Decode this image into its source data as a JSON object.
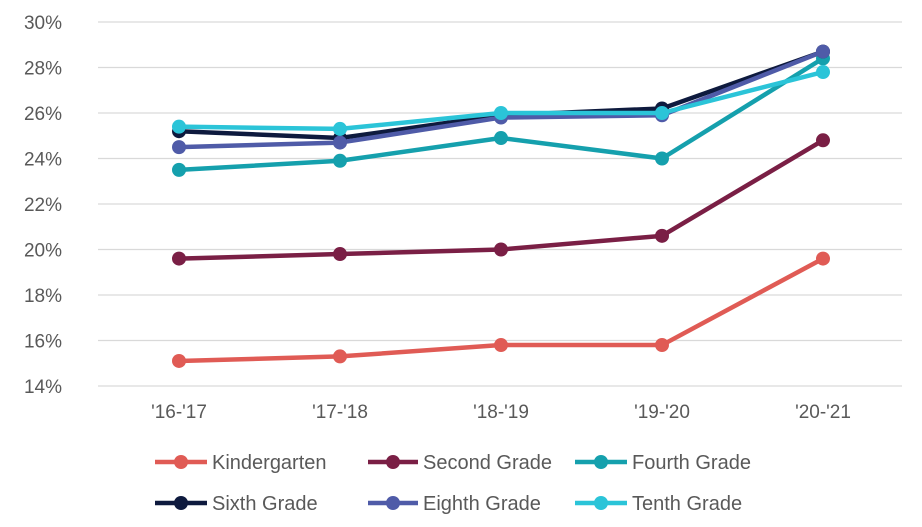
{
  "chart_data": {
    "type": "line",
    "title": "",
    "xlabel": "",
    "ylabel": "",
    "categories": [
      "'16-'17",
      "'17-'18",
      "'18-'19",
      "'19-'20",
      "'20-'21"
    ],
    "ylim": [
      14,
      30
    ],
    "yticks": [
      14,
      16,
      18,
      20,
      22,
      24,
      26,
      28,
      30
    ],
    "y_format": "percent",
    "grid": "horizontal",
    "legend_position": "bottom",
    "series": [
      {
        "name": "Kindergarten",
        "color": "#e05b55",
        "values": [
          15.1,
          15.3,
          15.8,
          15.8,
          19.6
        ]
      },
      {
        "name": "Second Grade",
        "color": "#7a1f45",
        "values": [
          19.6,
          19.8,
          20.0,
          20.6,
          24.8
        ]
      },
      {
        "name": "Fourth Grade",
        "color": "#15a0ad",
        "values": [
          23.5,
          23.9,
          24.9,
          24.0,
          28.4
        ]
      },
      {
        "name": "Sixth Grade",
        "color": "#0e1a3e",
        "values": [
          25.2,
          24.9,
          25.9,
          26.2,
          28.7
        ]
      },
      {
        "name": "Eighth Grade",
        "color": "#4f5ba8",
        "values": [
          24.5,
          24.7,
          25.8,
          25.9,
          28.7
        ]
      },
      {
        "name": "Tenth Grade",
        "color": "#2bc4d8",
        "values": [
          25.4,
          25.3,
          26.0,
          26.0,
          27.8
        ]
      }
    ]
  }
}
